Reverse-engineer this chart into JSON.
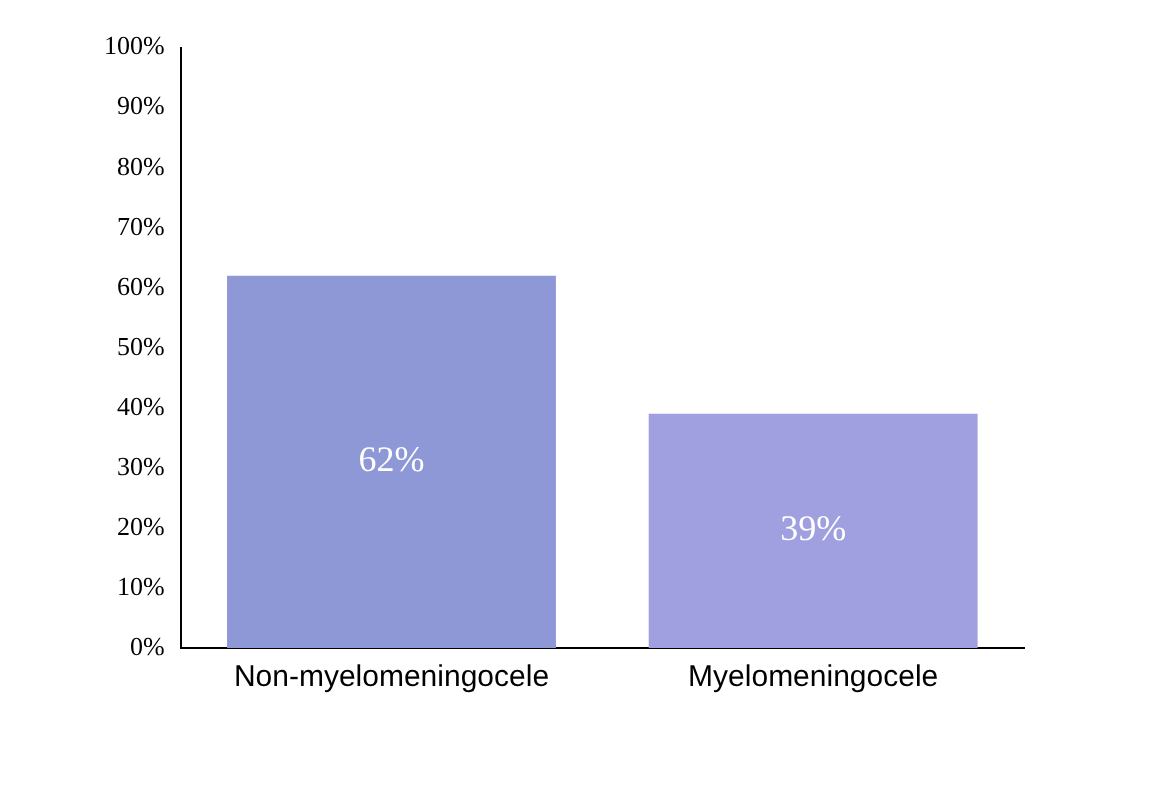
{
  "chart_data": {
    "type": "bar",
    "categories": [
      "Non-myelomeningocele",
      "Myelomeningocele"
    ],
    "values": [
      62,
      39
    ],
    "colors": [
      "#8f98d6",
      "#a09fdf"
    ],
    "ylim": [
      0,
      100
    ],
    "yticks": [
      {
        "value": 0,
        "label": "0%"
      },
      {
        "value": 10,
        "label": "10%"
      },
      {
        "value": 20,
        "label": "20%"
      },
      {
        "value": 30,
        "label": "30%"
      },
      {
        "value": 40,
        "label": "40%"
      },
      {
        "value": 50,
        "label": "50%"
      },
      {
        "value": 60,
        "label": "60%"
      },
      {
        "value": 70,
        "label": "70%"
      },
      {
        "value": 80,
        "label": "80%"
      },
      {
        "value": 90,
        "label": "90%"
      },
      {
        "value": 100,
        "label": "100%"
      }
    ],
    "value_labels": [
      "62%",
      "39%"
    ],
    "grid": false,
    "legend": false
  }
}
